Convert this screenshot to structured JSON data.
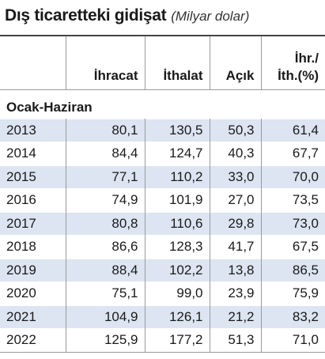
{
  "header": {
    "title": "Dış ticaretteki gidişat",
    "subtitle": "(Milyar dolar)"
  },
  "table": {
    "columns": [
      [
        "İhracat"
      ],
      [
        "İthalat"
      ],
      [
        "Açık"
      ],
      [
        "İhr./",
        "İth.(%)"
      ]
    ],
    "group": "Ocak-Haziran",
    "rows": [
      [
        "2013",
        "80,1",
        "130,5",
        "50,3",
        "61,4"
      ],
      [
        "2014",
        "84,4",
        "124,7",
        "40,3",
        "67,7"
      ],
      [
        "2015",
        "77,1",
        "110,2",
        "33,0",
        "70,0"
      ],
      [
        "2016",
        "74,9",
        "101,9",
        "27,0",
        "73,5"
      ],
      [
        "2017",
        "80,8",
        "110,6",
        "29,8",
        "73,0"
      ],
      [
        "2018",
        "86,6",
        "128,3",
        "41,7",
        "67,5"
      ],
      [
        "2019",
        "88,4",
        "102,2",
        "13,8",
        "86,5"
      ],
      [
        "2020",
        "75,1",
        "99,0",
        "23,9",
        "75,9"
      ],
      [
        "2021",
        "104,9",
        "126,1",
        "21,2",
        "83,2"
      ],
      [
        "2022",
        "125,9",
        "177,2",
        "51,3",
        "71,0"
      ]
    ]
  }
}
